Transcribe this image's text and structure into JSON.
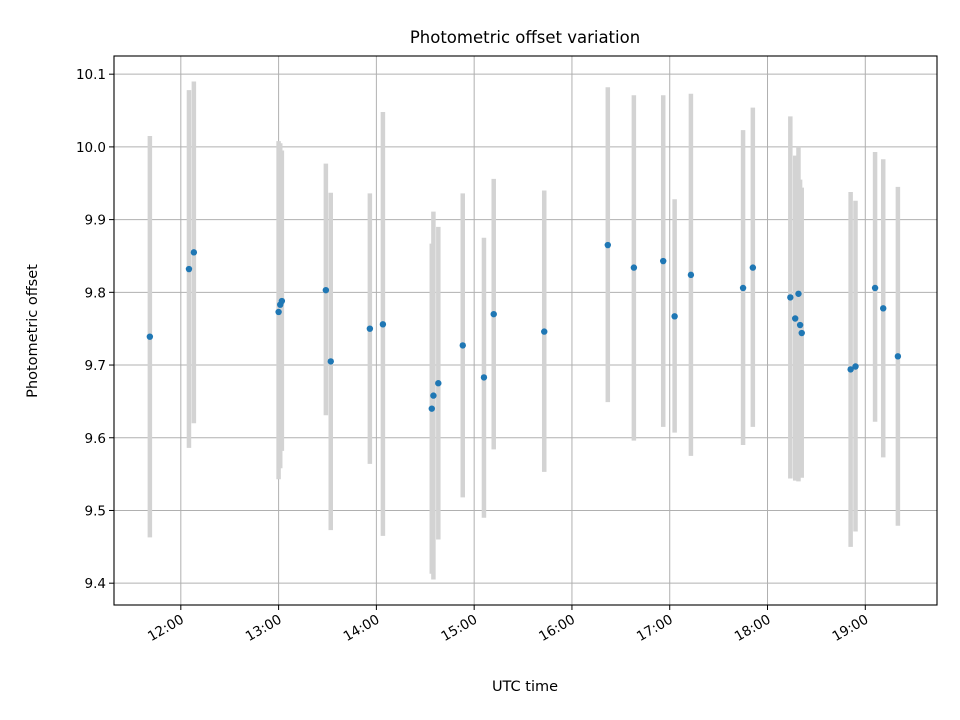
{
  "chart_data": {
    "type": "scatter",
    "title": "Photometric offset variation",
    "xlabel": "UTC time",
    "ylabel": "Photometric offset",
    "x_ticks": [
      "12:00",
      "13:00",
      "14:00",
      "15:00",
      "16:00",
      "17:00",
      "18:00",
      "19:00"
    ],
    "y_ticks": [
      9.4,
      9.5,
      9.6,
      9.7,
      9.8,
      9.9,
      10.0,
      10.1
    ],
    "xlim": [
      "11:19",
      "19:44"
    ],
    "ylim": [
      9.37,
      10.125
    ],
    "grid": true,
    "errorbar_color": "#d3d3d3",
    "point_color": "#1f77b4",
    "points": [
      {
        "x": "11:41",
        "y": 9.739,
        "ylow": 9.463,
        "yhigh": 10.015
      },
      {
        "x": "12:05",
        "y": 9.832,
        "ylow": 9.586,
        "yhigh": 10.078
      },
      {
        "x": "12:08",
        "y": 9.855,
        "ylow": 9.62,
        "yhigh": 10.09
      },
      {
        "x": "13:00",
        "y": 9.773,
        "ylow": 9.543,
        "yhigh": 10.008
      },
      {
        "x": "13:01",
        "y": 9.783,
        "ylow": 9.558,
        "yhigh": 10.005
      },
      {
        "x": "13:02",
        "y": 9.788,
        "ylow": 9.582,
        "yhigh": 9.995
      },
      {
        "x": "13:29",
        "y": 9.803,
        "ylow": 9.631,
        "yhigh": 9.977
      },
      {
        "x": "13:32",
        "y": 9.705,
        "ylow": 9.473,
        "yhigh": 9.937
      },
      {
        "x": "13:56",
        "y": 9.75,
        "ylow": 9.564,
        "yhigh": 9.936
      },
      {
        "x": "14:04",
        "y": 9.756,
        "ylow": 9.465,
        "yhigh": 10.048
      },
      {
        "x": "14:34",
        "y": 9.64,
        "ylow": 9.413,
        "yhigh": 9.867
      },
      {
        "x": "14:35",
        "y": 9.658,
        "ylow": 9.405,
        "yhigh": 9.911
      },
      {
        "x": "14:38",
        "y": 9.675,
        "ylow": 9.46,
        "yhigh": 9.89
      },
      {
        "x": "14:53",
        "y": 9.727,
        "ylow": 9.518,
        "yhigh": 9.936
      },
      {
        "x": "15:06",
        "y": 9.683,
        "ylow": 9.49,
        "yhigh": 9.875
      },
      {
        "x": "15:12",
        "y": 9.77,
        "ylow": 9.584,
        "yhigh": 9.956
      },
      {
        "x": "15:43",
        "y": 9.746,
        "ylow": 9.553,
        "yhigh": 9.94
      },
      {
        "x": "16:22",
        "y": 9.865,
        "ylow": 9.649,
        "yhigh": 10.082
      },
      {
        "x": "16:38",
        "y": 9.834,
        "ylow": 9.596,
        "yhigh": 10.071
      },
      {
        "x": "16:56",
        "y": 9.843,
        "ylow": 9.615,
        "yhigh": 10.071
      },
      {
        "x": "17:03",
        "y": 9.767,
        "ylow": 9.607,
        "yhigh": 9.928
      },
      {
        "x": "17:13",
        "y": 9.824,
        "ylow": 9.575,
        "yhigh": 10.073
      },
      {
        "x": "17:45",
        "y": 9.806,
        "ylow": 9.59,
        "yhigh": 10.023
      },
      {
        "x": "17:51",
        "y": 9.834,
        "ylow": 9.615,
        "yhigh": 10.054
      },
      {
        "x": "18:14",
        "y": 9.793,
        "ylow": 9.544,
        "yhigh": 10.042
      },
      {
        "x": "18:17",
        "y": 9.764,
        "ylow": 9.541,
        "yhigh": 9.988
      },
      {
        "x": "18:19",
        "y": 9.798,
        "ylow": 9.54,
        "yhigh": 10.0
      },
      {
        "x": "18:20",
        "y": 9.755,
        "ylow": 9.555,
        "yhigh": 9.955
      },
      {
        "x": "18:21",
        "y": 9.744,
        "ylow": 9.545,
        "yhigh": 9.944
      },
      {
        "x": "18:51",
        "y": 9.694,
        "ylow": 9.45,
        "yhigh": 9.938
      },
      {
        "x": "18:54",
        "y": 9.698,
        "ylow": 9.471,
        "yhigh": 9.926
      },
      {
        "x": "19:06",
        "y": 9.806,
        "ylow": 9.622,
        "yhigh": 9.993
      },
      {
        "x": "19:11",
        "y": 9.778,
        "ylow": 9.573,
        "yhigh": 9.983
      },
      {
        "x": "19:20",
        "y": 9.712,
        "ylow": 9.479,
        "yhigh": 9.945
      }
    ]
  }
}
